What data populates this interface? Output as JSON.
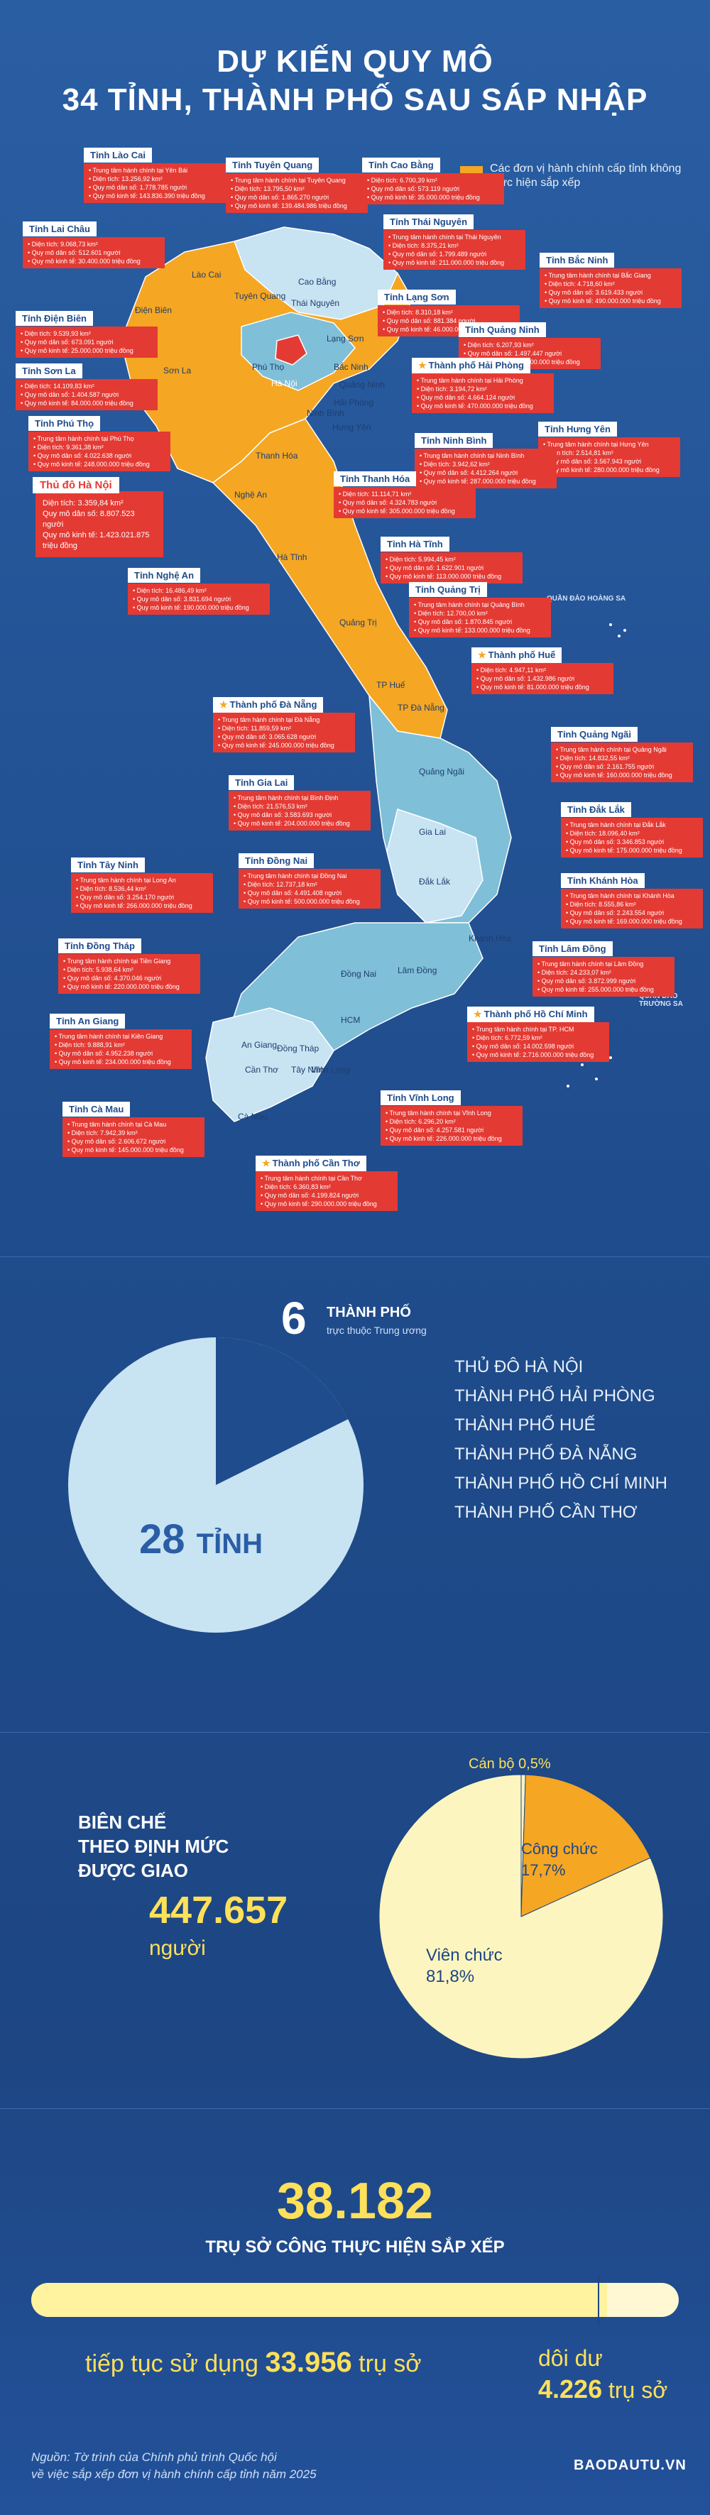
{
  "title": {
    "line1": "DỰ KIẾN QUY MÔ",
    "line2": "34 TỈNH, THÀNH PHỐ SAU SÁP NHẬP"
  },
  "legend": "Các đơn vị hành chính cấp tỉnh không thực hiện sắp xếp",
  "colors": {
    "accent_orange": "#f5a623",
    "red": "#e43a34",
    "yellow": "#ffe05a",
    "lightblue": "#c8e3f2",
    "mid": "#7fbfd8"
  },
  "map_labels": [
    "Lai Châu",
    "Lào Cai",
    "Tuyên Quang",
    "Cao Bằng",
    "Thái Nguyên",
    "Lạng Sơn",
    "Điện Biên",
    "Sơn La",
    "Phú Thọ",
    "Hà Nội",
    "Bắc Ninh",
    "Quảng Ninh",
    "Hải Phòng",
    "Hưng Yên",
    "Ninh Bình",
    "Thanh Hóa",
    "Nghệ An",
    "Hà Tĩnh",
    "Quảng Trị",
    "TP Huế",
    "TP Đà Nẵng",
    "Quảng Ngãi",
    "Gia Lai",
    "Đắk Lắk",
    "Khánh Hòa",
    "Lâm Đồng",
    "Đồng Nai",
    "Tây Ninh",
    "Đồng Tháp",
    "An Giang",
    "Cần Thơ",
    "Vĩnh Long",
    "Cà Mau",
    "HCM"
  ],
  "islands": [
    "QUẦN ĐẢO HOÀNG SA",
    "QUẦN ĐẢO TRƯỜNG SA"
  ],
  "hanoi": {
    "title": "Thủ đô Hà Nội",
    "lines": [
      "Diện tích: 3.359,84 km²",
      "Quy mô dân số: 8.807.523 người",
      "Quy mô kinh tế: 1.423.021.875 triệu đồng"
    ]
  },
  "boxes": [
    {
      "title": "Tỉnh Lào Cai",
      "lines": [
        "Trung tâm hành chính tại Yên Bái",
        "Diện tích: 13.256,92 km²",
        "Quy mô dân số: 1.778.785 người",
        "Quy mô kinh tế: 143.836.390 triệu đồng"
      ]
    },
    {
      "title": "Tỉnh Tuyên Quang",
      "lines": [
        "Trung tâm hành chính tại Tuyên Quang",
        "Diện tích: 13.795,50 km²",
        "Quy mô dân số: 1.865.270 người",
        "Quy mô kinh tế: 139.484.986 triệu đồng"
      ]
    },
    {
      "title": "Tỉnh Cao Bằng",
      "lines": [
        "Diện tích: 6.700,39 km²",
        "Quy mô dân số: 573.119 người",
        "Quy mô kinh tế: 35.000.000 triệu đồng"
      ]
    },
    {
      "title": "Tỉnh Lai Châu",
      "lines": [
        "Diện tích: 9.068,73 km²",
        "Quy mô dân số: 512.601 người",
        "Quy mô kinh tế: 30.400.000 triệu đồng"
      ]
    },
    {
      "title": "Tỉnh Thái Nguyên",
      "lines": [
        "Trung tâm hành chính tại Thái Nguyên",
        "Diện tích: 8.375,21 km²",
        "Quy mô dân số: 1.799.489 người",
        "Quy mô kinh tế: 211.000.000 triệu đồng"
      ]
    },
    {
      "title": "Tỉnh Bắc Ninh",
      "lines": [
        "Trung tâm hành chính tại Bắc Giang",
        "Diện tích: 4.718,60 km²",
        "Quy mô dân số: 3.619.433 người",
        "Quy mô kinh tế: 490.000.000 triệu đồng"
      ]
    },
    {
      "title": "Tỉnh Điện Biên",
      "lines": [
        "Diện tích: 9.539,93 km²",
        "Quy mô dân số: 673.091 người",
        "Quy mô kinh tế: 25.000.000 triệu đồng"
      ]
    },
    {
      "title": "Tỉnh Lạng Sơn",
      "lines": [
        "Diện tích: 8.310,18 km²",
        "Quy mô dân số: 881.384 người",
        "Quy mô kinh tế: 46.000.000 triệu đồng"
      ]
    },
    {
      "title": "Tỉnh Quảng Ninh",
      "lines": [
        "Diện tích: 6.207,93 km²",
        "Quy mô dân số: 1.497.447 người",
        "Quy mô kinh tế: 293.000.000 triệu đồng"
      ]
    },
    {
      "title": "Tỉnh Sơn La",
      "lines": [
        "Diện tích: 14.109,83 km²",
        "Quy mô dân số: 1.404.587 người",
        "Quy mô kinh tế: 84.000.000 triệu đồng"
      ]
    },
    {
      "title": "Thành phố Hải Phòng",
      "lines": [
        "Trung tâm hành chính tại Hải Phòng",
        "Diện tích: 3.194,72 km²",
        "Quy mô dân số: 4.664.124 người",
        "Quy mô kinh tế: 470.000.000 triệu đồng"
      ]
    },
    {
      "title": "Tỉnh Phú Thọ",
      "lines": [
        "Trung tâm hành chính tại Phú Thọ",
        "Diện tích: 9.361,38 km²",
        "Quy mô dân số: 4.022.638 người",
        "Quy mô kinh tế: 248.000.000 triệu đồng"
      ]
    },
    {
      "title": "Tỉnh Hưng Yên",
      "lines": [
        "Trung tâm hành chính tại Hưng Yên",
        "Diện tích: 2.514,81 km²",
        "Quy mô dân số: 3.567.943 người",
        "Quy mô kinh tế: 280.000.000 triệu đồng"
      ]
    },
    {
      "title": "Tỉnh Ninh Bình",
      "lines": [
        "Trung tâm hành chính tại Ninh Bình",
        "Diện tích: 3.942,62 km²",
        "Quy mô dân số: 4.412.264 người",
        "Quy mô kinh tế: 287.000.000 triệu đồng"
      ]
    },
    {
      "title": "Tỉnh Thanh Hóa",
      "lines": [
        "Diện tích: 11.114,71 km²",
        "Quy mô dân số: 4.324.783 người",
        "Quy mô kinh tế: 305.000.000 triệu đồng"
      ]
    },
    {
      "title": "Tỉnh Nghệ An",
      "lines": [
        "Diện tích: 16.486,49 km²",
        "Quy mô dân số: 3.831.694 người",
        "Quy mô kinh tế: 190.000.000 triệu đồng"
      ]
    },
    {
      "title": "Tỉnh Hà Tĩnh",
      "lines": [
        "Diện tích: 5.994,45 km²",
        "Quy mô dân số: 1.622.901 người",
        "Quy mô kinh tế: 113.000.000 triệu đồng"
      ]
    },
    {
      "title": "Tỉnh Quảng Trị",
      "lines": [
        "Trung tâm hành chính tại Quảng Bình",
        "Diện tích: 12.700,00 km²",
        "Quy mô dân số: 1.870.845 người",
        "Quy mô kinh tế: 133.000.000 triệu đồng"
      ]
    },
    {
      "title": "Thành phố Huế",
      "lines": [
        "Diện tích: 4.947,11 km²",
        "Quy mô dân số: 1.432.986 người",
        "Quy mô kinh tế: 81.000.000 triệu đồng"
      ]
    },
    {
      "title": "Thành phố Đà Nẵng",
      "lines": [
        "Trung tâm hành chính tại Đà Nẵng",
        "Diện tích: 11.859,59 km²",
        "Quy mô dân số: 3.065.628 người",
        "Quy mô kinh tế: 245.000.000 triệu đồng"
      ]
    },
    {
      "title": "Tỉnh Quảng Ngãi",
      "lines": [
        "Trung tâm hành chính tại Quảng Ngãi",
        "Diện tích: 14.832,55 km²",
        "Quy mô dân số: 2.161.755 người",
        "Quy mô kinh tế: 160.000.000 triệu đồng"
      ]
    },
    {
      "title": "Tỉnh Gia Lai",
      "lines": [
        "Trung tâm hành chính tại Bình Định",
        "Diện tích: 21.576,53 km²",
        "Quy mô dân số: 3.583.693 người",
        "Quy mô kinh tế: 204.000.000 triệu đồng"
      ]
    },
    {
      "title": "Tỉnh Đắk Lắk",
      "lines": [
        "Trung tâm hành chính tại Đắk Lắk",
        "Diện tích: 18.096,40 km²",
        "Quy mô dân số: 3.346.853 người",
        "Quy mô kinh tế: 175.000.000 triệu đồng"
      ]
    },
    {
      "title": "Tỉnh Khánh Hòa",
      "lines": [
        "Trung tâm hành chính tại Khánh Hòa",
        "Diện tích: 8.555,86 km²",
        "Quy mô dân số: 2.243.554 người",
        "Quy mô kinh tế: 169.000.000 triệu đồng"
      ]
    },
    {
      "title": "Tỉnh Tây Ninh",
      "lines": [
        "Trung tâm hành chính tại Long An",
        "Diện tích: 8.536,44 km²",
        "Quy mô dân số: 3.254.170 người",
        "Quy mô kinh tế: 266.000.000 triệu đồng"
      ]
    },
    {
      "title": "Tỉnh Đồng Nai",
      "lines": [
        "Trung tâm hành chính tại Đồng Nai",
        "Diện tích: 12.737,18 km²",
        "Quy mô dân số: 4.491.408 người",
        "Quy mô kinh tế: 500.000.000 triệu đồng"
      ]
    },
    {
      "title": "Tỉnh Lâm Đồng",
      "lines": [
        "Trung tâm hành chính tại Lâm Đồng",
        "Diện tích: 24.233,07 km²",
        "Quy mô dân số: 3.872.999 người",
        "Quy mô kinh tế: 255.000.000 triệu đồng"
      ]
    },
    {
      "title": "Tỉnh Đồng Tháp",
      "lines": [
        "Trung tâm hành chính tại Tiền Giang",
        "Diện tích: 5.938,64 km²",
        "Quy mô dân số: 4.370.046 người",
        "Quy mô kinh tế: 220.000.000 triệu đồng"
      ]
    },
    {
      "title": "Thành phố Hồ Chí Minh",
      "lines": [
        "Trung tâm hành chính tại TP. HCM",
        "Diện tích: 6.772,59 km²",
        "Quy mô dân số: 14.002.598 người",
        "Quy mô kinh tế: 2.716.000.000 triệu đồng"
      ]
    },
    {
      "title": "Tỉnh An Giang",
      "lines": [
        "Trung tâm hành chính tại Kiên Giang",
        "Diện tích: 9.888,91 km²",
        "Quy mô dân số: 4.952.238 người",
        "Quy mô kinh tế: 234.000.000 triệu đồng"
      ]
    },
    {
      "title": "Tỉnh Cà Mau",
      "lines": [
        "Trung tâm hành chính tại Cà Mau",
        "Diện tích: 7.942,39 km²",
        "Quy mô dân số: 2.606.672 người",
        "Quy mô kinh tế: 145.000.000 triệu đồng"
      ]
    },
    {
      "title": "Tỉnh Vĩnh Long",
      "lines": [
        "Trung tâm hành chính tại Vĩnh Long",
        "Diện tích: 6.296,20 km²",
        "Quy mô dân số: 4.257.581 người",
        "Quy mô kinh tế: 226.000.000 triệu đồng"
      ]
    },
    {
      "title": "Thành phố Cần Thơ",
      "lines": [
        "Trung tâm hành chính tại Cần Thơ",
        "Diện tích: 6.360,83 km²",
        "Quy mô dân số: 4.199.824 người",
        "Quy mô kinh tế: 290.000.000 triệu đồng"
      ]
    }
  ],
  "section2": {
    "six": "6",
    "tp_label": "THÀNH PHỐ",
    "tp_sub": "trực thuộc Trung ương",
    "cities": [
      "THỦ ĐÔ HÀ NỘI",
      "THÀNH PHỐ HẢI PHÒNG",
      "THÀNH PHỐ HUẾ",
      "THÀNH PHỐ ĐÀ NẴNG",
      "THÀNH PHỐ HỒ CHÍ MINH",
      "THÀNH PHỐ CẦN THƠ"
    ],
    "provinces_num": "28",
    "provinces_label": "TỈNH",
    "pie_values": {
      "cities": 6,
      "provinces": 28
    }
  },
  "section3": {
    "title_lines": [
      "BIÊN CHẾ",
      "THEO ĐỊNH MỨC",
      "ĐƯỢC GIAO"
    ],
    "number": "447.657",
    "unit": "người",
    "pie": [
      {
        "name": "Cán bộ",
        "pct": "0,5%",
        "value": 0.5
      },
      {
        "name": "Công chức",
        "pct": "17,7%",
        "value": 17.7
      },
      {
        "name": "Viên chức",
        "pct": "81,8%",
        "value": 81.8
      }
    ]
  },
  "section4": {
    "number": "38.182",
    "subtitle": "TRỤ SỞ CÔNG THỰC HIỆN SẮP XẾP",
    "continue_prefix": "tiếp tục sử dụng",
    "continue_num": "33.956",
    "continue_unit": "trụ sở",
    "surplus_prefix": "dôi dư",
    "surplus_num": "4.226",
    "surplus_unit": "trụ sở",
    "bar_fraction": 0.889
  },
  "footer": {
    "source_line1": "Nguồn: Tờ trình của Chính phủ trình Quốc hội",
    "source_line2": "về việc sắp xếp đơn vị hành chính cấp tỉnh năm 2025",
    "brand": "BAODAUTU.VN"
  }
}
